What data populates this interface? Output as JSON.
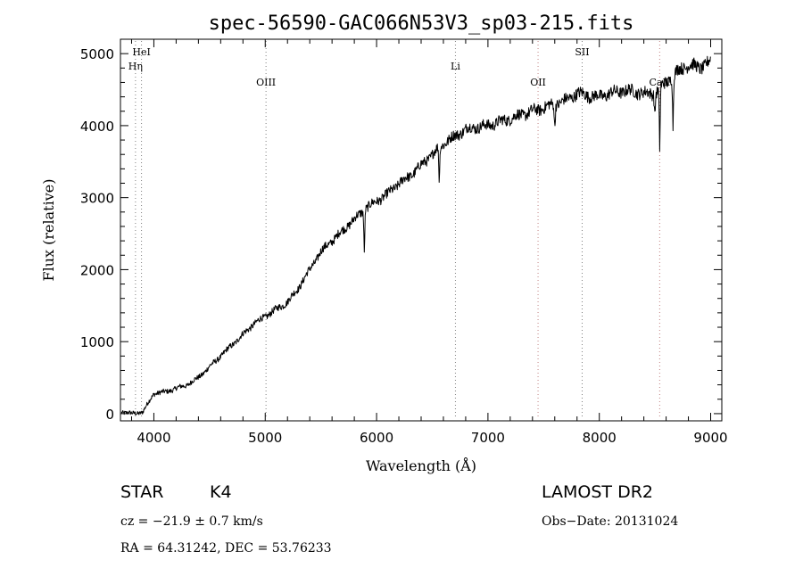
{
  "chart_data": {
    "type": "line",
    "title": "spec-56590-GAC066N53V3_sp03-215.fits",
    "xlabel": "Wavelength (Å)",
    "ylabel": "Flux (relative)",
    "xlim": [
      3700,
      9100
    ],
    "ylim": [
      -100,
      5200
    ],
    "x_ticks": [
      4000,
      5000,
      6000,
      7000,
      8000,
      9000
    ],
    "y_ticks": [
      0,
      1000,
      2000,
      3000,
      4000,
      5000
    ],
    "series": [
      {
        "name": "spectrum",
        "x": [
          3700,
          3800,
          3900,
          4000,
          4100,
          4200,
          4300,
          4400,
          4500,
          4600,
          4700,
          4800,
          4900,
          5000,
          5100,
          5200,
          5300,
          5400,
          5500,
          5600,
          5700,
          5800,
          5900,
          6000,
          6100,
          6200,
          6300,
          6400,
          6500,
          6600,
          6700,
          6800,
          6900,
          7000,
          7100,
          7200,
          7300,
          7400,
          7500,
          7600,
          7700,
          7800,
          7900,
          8000,
          8100,
          8200,
          8300,
          8400,
          8500,
          8600,
          8700,
          8800,
          8900,
          9000
        ],
        "y": [
          30,
          0,
          20,
          280,
          300,
          350,
          400,
          500,
          650,
          800,
          950,
          1100,
          1250,
          1350,
          1450,
          1550,
          1750,
          2000,
          2250,
          2400,
          2550,
          2700,
          2850,
          2950,
          3050,
          3200,
          3300,
          3450,
          3600,
          3750,
          3850,
          3950,
          3980,
          4000,
          4050,
          4100,
          4150,
          4200,
          4250,
          4300,
          4350,
          4450,
          4420,
          4400,
          4450,
          4480,
          4480,
          4450,
          4450,
          4600,
          4750,
          4850,
          4800,
          4900
        ]
      }
    ],
    "absorption_dips": [
      {
        "x": 5890,
        "y": 2250
      },
      {
        "x": 6563,
        "y": 3200
      },
      {
        "x": 7600,
        "y": 3950
      },
      {
        "x": 8498,
        "y": 4150
      },
      {
        "x": 8542,
        "y": 3680
      },
      {
        "x": 8662,
        "y": 4000
      }
    ],
    "line_markers": [
      {
        "label": "HeI",
        "x": 3889,
        "color": "#808080",
        "label_row": 0
      },
      {
        "label": "Hη",
        "x": 3835,
        "color": "#808080",
        "label_row": 1
      },
      {
        "label": "OIII",
        "x": 5007,
        "color": "#808080",
        "label_row": 2
      },
      {
        "label": "Li",
        "x": 6708,
        "color": "#808080",
        "label_row": 1
      },
      {
        "label": "OII",
        "x": 7450,
        "color": "#c08080",
        "label_row": 2
      },
      {
        "label": "SII",
        "x": 7846,
        "color": "#808080",
        "label_row": 0
      },
      {
        "label": "CaII",
        "x": 8542,
        "color": "#c08080",
        "label_row": 2
      }
    ]
  },
  "info": {
    "class_label": "STAR",
    "subclass_label": "K4",
    "survey_label": "LAMOST DR2",
    "cz_line": "cz = −21.9 ± 0.7 km/s",
    "obs_date_line": "Obs−Date: 20131024",
    "radec_line": "RA =  64.31242, DEC =  53.76233"
  }
}
